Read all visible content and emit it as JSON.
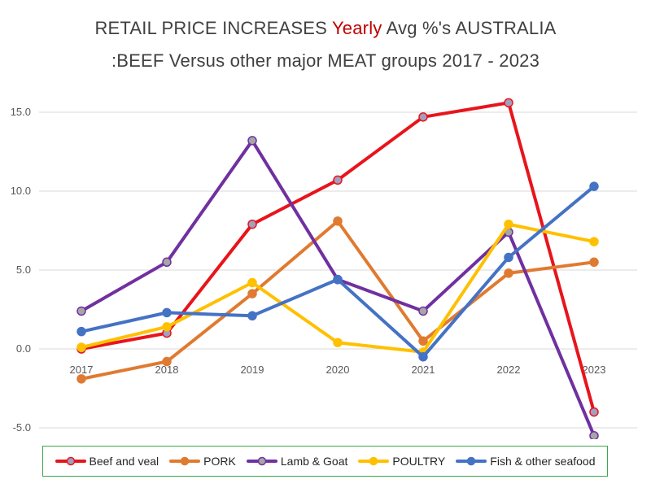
{
  "title": {
    "part1": "RETAIL PRICE INCREASES ",
    "highlight": "Yearly",
    "part2": " Avg %'s AUSTRALIA",
    "line2": ":BEEF Versus other major MEAT groups 2017 - 2023",
    "highlight_color": "#c00000"
  },
  "chart_data": {
    "type": "line",
    "title": "RETAIL PRICE INCREASES Yearly Avg %'s AUSTRALIA :BEEF Versus other major MEAT groups 2017 - 2023",
    "xlabel": "",
    "ylabel": "",
    "categories": [
      "2017",
      "2018",
      "2019",
      "2020",
      "2021",
      "2022",
      "2023"
    ],
    "ylim": [
      -5.0,
      15.0
    ],
    "yticks": [
      "15.0",
      "10.0",
      "5.0",
      "0.0",
      "-5.0"
    ],
    "ytick_values": [
      15,
      10,
      5,
      0,
      -5
    ],
    "grid": true,
    "legend_position": "bottom",
    "series": [
      {
        "name": "Beef and veal",
        "color": "#e8141c",
        "marker_color": "#a0a0c0",
        "values": [
          0.0,
          1.0,
          7.9,
          10.7,
          14.7,
          15.6,
          -4.0
        ]
      },
      {
        "name": "PORK",
        "color": "#e07a30",
        "marker_color": "#e07a30",
        "values": [
          -1.9,
          -0.8,
          3.5,
          8.1,
          0.5,
          4.8,
          5.5
        ]
      },
      {
        "name": "Lamb & Goat",
        "color": "#7030a0",
        "marker_color": "#a6a6a6",
        "values": [
          2.4,
          5.5,
          13.2,
          4.4,
          2.4,
          7.4,
          -5.5
        ]
      },
      {
        "name": "POULTRY",
        "color": "#ffc000",
        "marker_color": "#ffc000",
        "values": [
          0.1,
          1.4,
          4.2,
          0.4,
          -0.2,
          7.9,
          6.8
        ]
      },
      {
        "name": "Fish & other seafood",
        "color": "#4472c4",
        "marker_color": "#4472c4",
        "values": [
          1.1,
          2.3,
          2.1,
          4.4,
          -0.5,
          5.8,
          10.3
        ]
      }
    ]
  }
}
